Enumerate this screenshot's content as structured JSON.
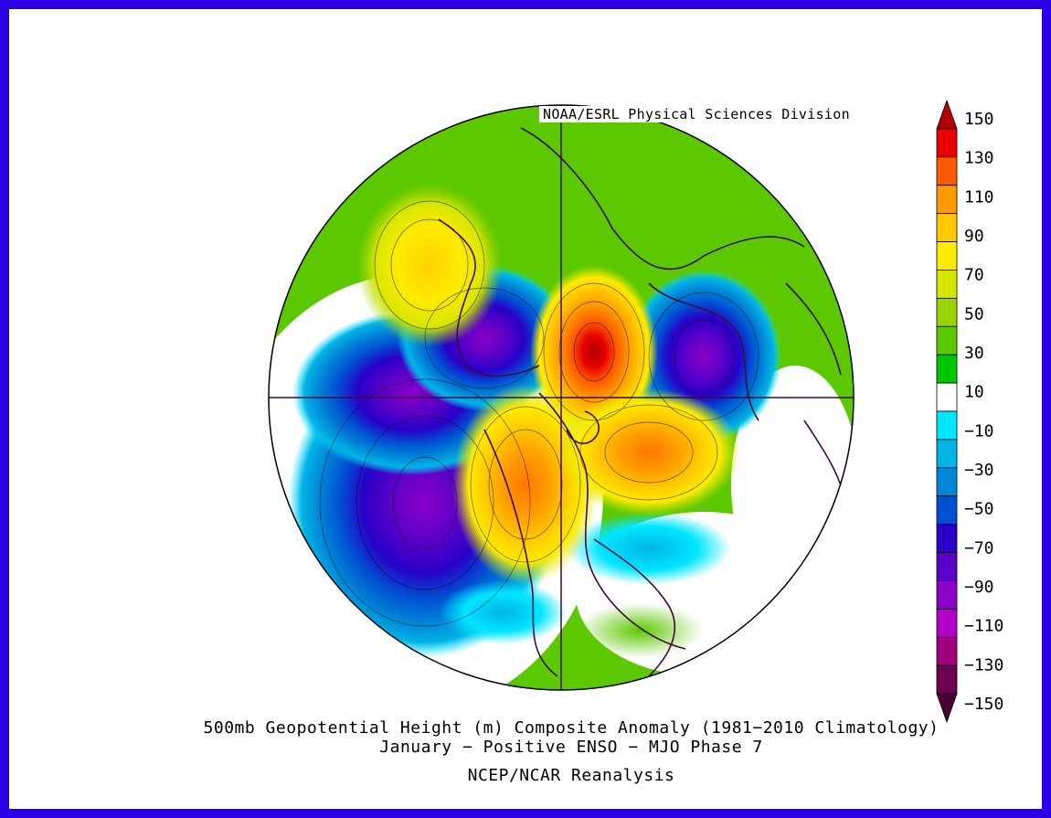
{
  "header": {
    "organization": "NOAA/ESRL Physical Sciences Division"
  },
  "map": {
    "projection": "north-polar-stereographic",
    "field": "500mb geopotential height anomaly",
    "features": [
      {
        "name": "positive anomaly over Alaska / Bering Sea",
        "approx_value": 75
      },
      {
        "name": "negative anomaly over western Siberia",
        "approx_value": -85
      },
      {
        "name": "strong positive anomaly over central Arctic / Eurasia",
        "approx_value": 140
      },
      {
        "name": "negative anomaly over eastern Siberia / Japan",
        "approx_value": -90
      },
      {
        "name": "positive anomaly over Canada / western Atlantic",
        "approx_value": 105
      },
      {
        "name": "positive anomaly over Greenland / North Atlantic",
        "approx_value": 90
      },
      {
        "name": "negative anomaly over central North Pacific",
        "approx_value": -90
      },
      {
        "name": "weak negative anomaly over US East coast",
        "approx_value": -30
      }
    ]
  },
  "colorbar": {
    "labels": [
      "150",
      "130",
      "110",
      "90",
      "70",
      "50",
      "30",
      "10",
      "−10",
      "−30",
      "−50",
      "−70",
      "−90",
      "−110",
      "−130",
      "−150"
    ],
    "colors": [
      "#b40000",
      "#e60000",
      "#ff5a00",
      "#ff9b00",
      "#ffc800",
      "#ffeb00",
      "#d7e600",
      "#9bd200",
      "#5cc800",
      "#00c800",
      "#ffffff",
      "#00e6ff",
      "#00b4e6",
      "#0087d7",
      "#0050d2",
      "#2800c8",
      "#5a00c8",
      "#8c00c8",
      "#b400c8",
      "#a0007d",
      "#6e0050",
      "#460032"
    ]
  },
  "title": {
    "line1": "500mb Geopotential Height (m) Composite Anomaly (1981−2010 Climatology)",
    "line2": "January − Positive ENSO − MJO Phase 7"
  },
  "source": "NCEP/NCAR Reanalysis"
}
